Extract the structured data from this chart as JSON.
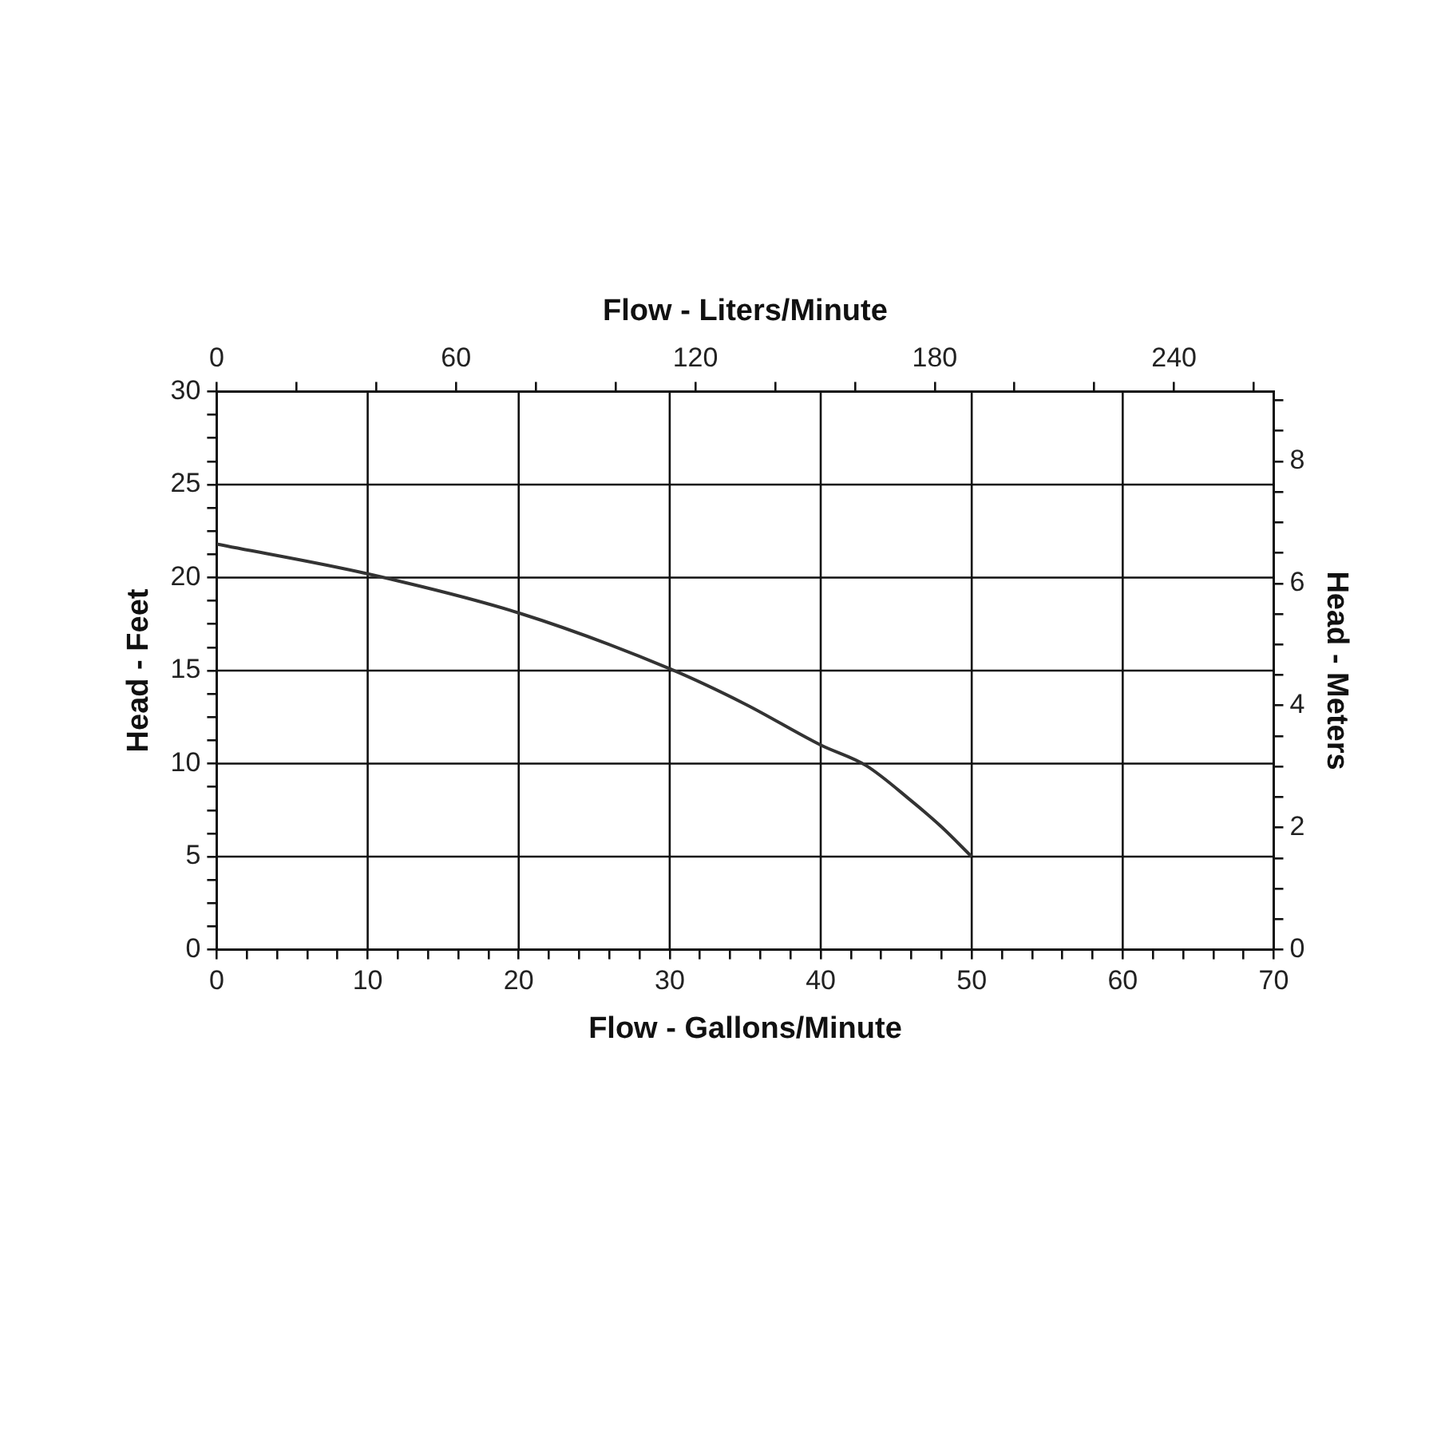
{
  "chart_data": {
    "type": "line",
    "xlabel": "Flow - Gallons/Minute",
    "x2label": "Flow - Liters/Minute",
    "ylabel": "Head - Feet",
    "y2label": "Head - Meters",
    "xlim": [
      0,
      70
    ],
    "xticks": [
      0,
      {
        "value": 2,
        "label": null
      },
      {
        "value": 4,
        "label": null
      },
      {
        "value": 6,
        "label": null
      },
      {
        "value": 8,
        "label": null
      },
      10,
      {
        "value": 12,
        "label": null
      },
      {
        "value": 14,
        "label": null
      },
      {
        "value": 16,
        "label": null
      },
      {
        "value": 18,
        "label": null
      },
      20,
      {
        "value": 22,
        "label": null
      },
      {
        "value": 24,
        "label": null
      },
      {
        "value": 26,
        "label": null
      },
      {
        "value": 28,
        "label": null
      },
      30,
      {
        "value": 32,
        "label": null
      },
      {
        "value": 34,
        "label": null
      },
      {
        "value": 36,
        "label": null
      },
      {
        "value": 38,
        "label": null
      },
      40,
      {
        "value": 42,
        "label": null
      },
      {
        "value": 44,
        "label": null
      },
      {
        "value": 46,
        "label": null
      },
      {
        "value": 48,
        "label": null
      },
      50,
      {
        "value": 52,
        "label": null
      },
      {
        "value": 54,
        "label": null
      },
      {
        "value": 56,
        "label": null
      },
      {
        "value": 58,
        "label": null
      },
      60,
      {
        "value": 62,
        "label": null
      },
      {
        "value": 64,
        "label": null
      },
      {
        "value": 66,
        "label": null
      },
      {
        "value": 68,
        "label": null
      },
      70
    ],
    "x2lim": [
      0,
      264.98
    ],
    "x2ticks": [
      0,
      {
        "value": 20,
        "label": null
      },
      {
        "value": 40,
        "label": null
      },
      60,
      {
        "value": 80,
        "label": null
      },
      {
        "value": 100,
        "label": null
      },
      120,
      {
        "value": 140,
        "label": null
      },
      {
        "value": 160,
        "label": null
      },
      180,
      {
        "value": 200,
        "label": null
      },
      {
        "value": 220,
        "label": null
      },
      240,
      {
        "value": 260,
        "label": null
      }
    ],
    "ylim": [
      0,
      30
    ],
    "yticks": [
      0,
      {
        "value": 1.25,
        "label": null
      },
      {
        "value": 2.5,
        "label": null
      },
      {
        "value": 3.75,
        "label": null
      },
      5,
      {
        "value": 6.25,
        "label": null
      },
      {
        "value": 7.5,
        "label": null
      },
      {
        "value": 8.75,
        "label": null
      },
      10,
      {
        "value": 11.25,
        "label": null
      },
      {
        "value": 12.5,
        "label": null
      },
      {
        "value": 13.75,
        "label": null
      },
      15,
      {
        "value": 16.25,
        "label": null
      },
      {
        "value": 17.5,
        "label": null
      },
      {
        "value": 18.75,
        "label": null
      },
      20,
      {
        "value": 21.25,
        "label": null
      },
      {
        "value": 22.5,
        "label": null
      },
      {
        "value": 23.75,
        "label": null
      },
      25,
      {
        "value": 26.25,
        "label": null
      },
      {
        "value": 27.5,
        "label": null
      },
      {
        "value": 28.75,
        "label": null
      },
      30
    ],
    "y2lim": [
      0,
      9.144
    ],
    "y2ticks": [
      0,
      {
        "value": 0.5,
        "label": null
      },
      {
        "value": 1,
        "label": null
      },
      {
        "value": 1.5,
        "label": null
      },
      2,
      {
        "value": 2.5,
        "label": null
      },
      {
        "value": 3,
        "label": null
      },
      {
        "value": 3.5,
        "label": null
      },
      4,
      {
        "value": 4.5,
        "label": null
      },
      {
        "value": 5,
        "label": null
      },
      {
        "value": 5.5,
        "label": null
      },
      6,
      {
        "value": 6.5,
        "label": null
      },
      {
        "value": 7,
        "label": null
      },
      {
        "value": 7.5,
        "label": null
      },
      8,
      {
        "value": 8.5,
        "label": null
      },
      {
        "value": 9,
        "label": null
      }
    ],
    "grid": true,
    "legend": false,
    "marker": "none",
    "line_style": "solid",
    "series": [
      {
        "color": "#333333",
        "x": [
          0,
          10,
          20,
          30,
          35,
          40,
          43,
          46,
          48,
          50
        ],
        "values": [
          21.8,
          20.2,
          18.1,
          15.1,
          13.2,
          11.0,
          9.9,
          8.0,
          6.6,
          5.0
        ]
      }
    ]
  }
}
